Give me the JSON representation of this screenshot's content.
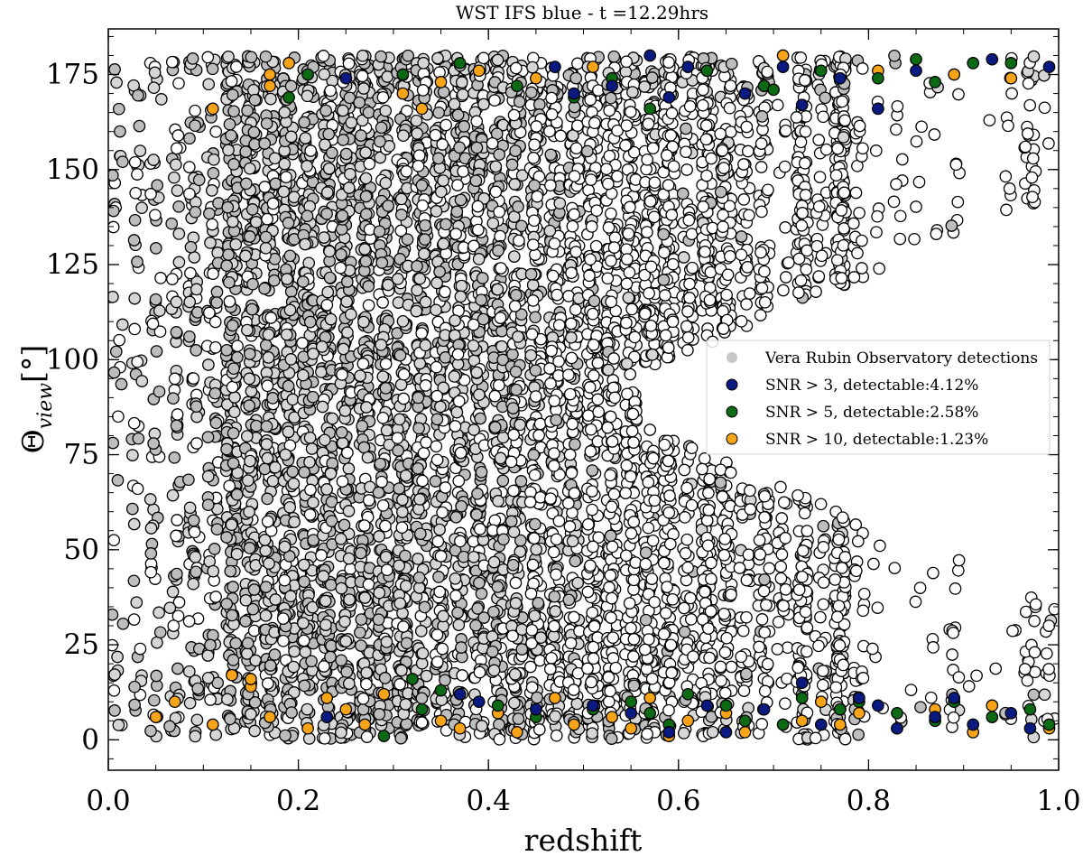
{
  "chart_data": {
    "type": "scatter",
    "title": "WST IFS blue - t =12.29hrs",
    "xlabel": "redshift",
    "ylabel_main": "Θ",
    "ylabel_sub": "view",
    "ylabel_unit": "[°]",
    "xlim": [
      0.0,
      1.0
    ],
    "ylim": [
      -8,
      187
    ],
    "xticks": [
      0.0,
      0.2,
      0.4,
      0.6,
      0.8,
      1.0
    ],
    "xtick_labels": [
      "0.0",
      "0.2",
      "0.4",
      "0.6",
      "0.8",
      "1.0"
    ],
    "yticks": [
      0,
      25,
      50,
      75,
      100,
      125,
      150,
      175
    ],
    "ytick_labels": [
      "0",
      "25",
      "50",
      "75",
      "100",
      "125",
      "150",
      "175"
    ],
    "grid": false,
    "legend_position": "center-right",
    "series": [
      {
        "name": "Vera Rubin Observatory detections",
        "color": "#c8c8c8",
        "edgecolor": "#000000",
        "description": "white/gray simulated events; gray where Rubin-detected (dense at z < 0.5), white elsewhere",
        "redshift_bins_center": [
          0.01,
          0.03,
          0.05,
          0.07,
          0.09,
          0.11,
          0.13,
          0.15,
          0.17,
          0.19,
          0.21,
          0.23,
          0.25,
          0.27,
          0.29,
          0.31,
          0.33,
          0.35,
          0.37,
          0.39,
          0.41,
          0.43,
          0.45,
          0.47,
          0.49,
          0.51,
          0.53,
          0.55,
          0.57,
          0.59,
          0.61,
          0.63,
          0.65,
          0.67,
          0.69,
          0.71,
          0.73,
          0.75,
          0.77,
          0.79,
          0.81,
          0.83,
          0.85,
          0.87,
          0.89,
          0.91,
          0.93,
          0.95,
          0.97,
          0.99
        ],
        "theta_range_deg": [
          0,
          180
        ],
        "excluded_wedge_start_redshift": 0.55,
        "excluded_wedge_center_deg": 90
      },
      {
        "name": "SNR > 3, detectable:4.12%",
        "color": "#0a1a80",
        "edgecolor": "#000000",
        "points": [
          [
            0.23,
            6
          ],
          [
            0.25,
            174
          ],
          [
            0.37,
            12
          ],
          [
            0.39,
            10
          ],
          [
            0.45,
            8
          ],
          [
            0.47,
            177
          ],
          [
            0.51,
            9
          ],
          [
            0.55,
            7
          ],
          [
            0.57,
            180
          ],
          [
            0.59,
            2
          ],
          [
            0.61,
            177
          ],
          [
            0.63,
            9
          ],
          [
            0.65,
            2
          ],
          [
            0.67,
            170
          ],
          [
            0.69,
            8
          ],
          [
            0.71,
            177
          ],
          [
            0.73,
            15
          ],
          [
            0.75,
            4
          ],
          [
            0.77,
            174
          ],
          [
            0.79,
            11
          ],
          [
            0.81,
            9
          ],
          [
            0.83,
            3
          ],
          [
            0.85,
            176
          ],
          [
            0.87,
            6
          ],
          [
            0.89,
            11
          ],
          [
            0.91,
            4
          ],
          [
            0.93,
            179
          ],
          [
            0.95,
            7
          ],
          [
            0.97,
            3
          ],
          [
            0.99,
            177
          ],
          [
            0.49,
            170
          ],
          [
            0.53,
            172
          ],
          [
            0.59,
            169
          ],
          [
            0.73,
            167
          ],
          [
            0.81,
            166
          ]
        ]
      },
      {
        "name": "SNR > 5, detectable:2.58%",
        "color": "#0c6a14",
        "edgecolor": "#000000",
        "points": [
          [
            0.19,
            169
          ],
          [
            0.21,
            175
          ],
          [
            0.29,
            1
          ],
          [
            0.31,
            175
          ],
          [
            0.33,
            8
          ],
          [
            0.35,
            13
          ],
          [
            0.37,
            178
          ],
          [
            0.41,
            9
          ],
          [
            0.43,
            172
          ],
          [
            0.45,
            6
          ],
          [
            0.49,
            169
          ],
          [
            0.51,
            8
          ],
          [
            0.53,
            174
          ],
          [
            0.55,
            10
          ],
          [
            0.57,
            7
          ],
          [
            0.59,
            4
          ],
          [
            0.61,
            12
          ],
          [
            0.63,
            176
          ],
          [
            0.65,
            9
          ],
          [
            0.67,
            5
          ],
          [
            0.69,
            172
          ],
          [
            0.71,
            4
          ],
          [
            0.73,
            11
          ],
          [
            0.75,
            176
          ],
          [
            0.77,
            8
          ],
          [
            0.79,
            10
          ],
          [
            0.81,
            174
          ],
          [
            0.83,
            7
          ],
          [
            0.85,
            179
          ],
          [
            0.87,
            5
          ],
          [
            0.89,
            10
          ],
          [
            0.91,
            178
          ],
          [
            0.93,
            6
          ],
          [
            0.95,
            178
          ],
          [
            0.97,
            8
          ],
          [
            0.99,
            4
          ],
          [
            0.32,
            16
          ],
          [
            0.57,
            166
          ],
          [
            0.7,
            171
          ],
          [
            0.87,
            173
          ]
        ]
      },
      {
        "name": "SNR > 10, detectable:1.23%",
        "color": "#f7a418",
        "edgecolor": "#000000",
        "points": [
          [
            0.05,
            6
          ],
          [
            0.07,
            10
          ],
          [
            0.11,
            4
          ],
          [
            0.11,
            166
          ],
          [
            0.13,
            17
          ],
          [
            0.15,
            14
          ],
          [
            0.17,
            6
          ],
          [
            0.17,
            172
          ],
          [
            0.19,
            178
          ],
          [
            0.21,
            3
          ],
          [
            0.23,
            11
          ],
          [
            0.25,
            8
          ],
          [
            0.27,
            4
          ],
          [
            0.29,
            12
          ],
          [
            0.31,
            170
          ],
          [
            0.33,
            166
          ],
          [
            0.35,
            5
          ],
          [
            0.37,
            3
          ],
          [
            0.39,
            176
          ],
          [
            0.41,
            7
          ],
          [
            0.43,
            2
          ],
          [
            0.45,
            174
          ],
          [
            0.47,
            11
          ],
          [
            0.49,
            4
          ],
          [
            0.51,
            177
          ],
          [
            0.53,
            6
          ],
          [
            0.55,
            3
          ],
          [
            0.57,
            11
          ],
          [
            0.59,
            1
          ],
          [
            0.61,
            5
          ],
          [
            0.63,
            176
          ],
          [
            0.65,
            7
          ],
          [
            0.67,
            2
          ],
          [
            0.69,
            172
          ],
          [
            0.71,
            180
          ],
          [
            0.73,
            5
          ],
          [
            0.75,
            10
          ],
          [
            0.77,
            4
          ],
          [
            0.79,
            7
          ],
          [
            0.81,
            176
          ],
          [
            0.83,
            3
          ],
          [
            0.87,
            8
          ],
          [
            0.89,
            175
          ],
          [
            0.91,
            2
          ],
          [
            0.93,
            9
          ],
          [
            0.95,
            174
          ],
          [
            0.99,
            3
          ],
          [
            0.15,
            16
          ],
          [
            0.17,
            175
          ],
          [
            0.35,
            173
          ]
        ]
      }
    ]
  }
}
